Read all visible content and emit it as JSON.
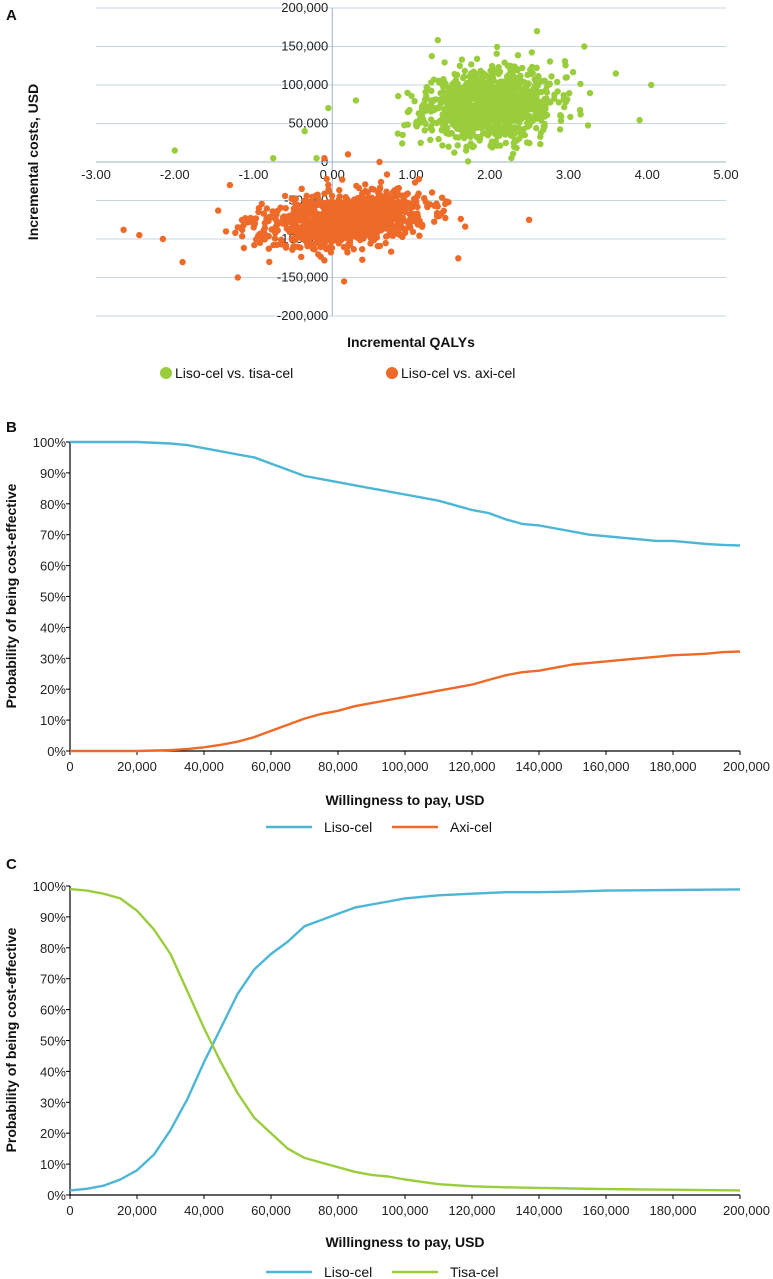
{
  "chart_data": [
    {
      "panel": "A",
      "type": "scatter",
      "xlabel": "Incremental QALYs",
      "ylabel": "Incremental costs, USD",
      "xlim": [
        -3,
        5
      ],
      "ylim": [
        -200000,
        200000
      ],
      "xticks": [
        -3,
        -2,
        -1,
        0,
        1,
        2,
        3,
        4,
        5
      ],
      "xtick_labels": [
        "-3.00",
        "-2.00",
        "-1.00",
        "0.00",
        "1.00",
        "2.00",
        "3.00",
        "4.00",
        "5.00"
      ],
      "yticks": [
        -200000,
        -150000,
        -100000,
        -50000,
        0,
        50000,
        100000,
        150000,
        200000
      ],
      "ytick_labels": [
        "-200,000",
        "-150,000",
        "-100,000",
        "-50,000",
        "0",
        "50,000",
        "100,000",
        "150,000",
        "200,000"
      ],
      "grid": true,
      "legend_position": "bottom",
      "series": [
        {
          "name": "Liso-cel vs. tisa-cel",
          "color": "#9ACD3C",
          "center": [
            2.0,
            75000
          ],
          "spread": [
            0.55,
            28000
          ],
          "count": 1000,
          "seed": 11,
          "points": [
            [
              -2.0,
              15000
            ],
            [
              -0.75,
              5000
            ],
            [
              -0.35,
              40000
            ],
            [
              -0.2,
              5000
            ],
            [
              4.05,
              100000
            ],
            [
              2.6,
              170000
            ],
            [
              3.2,
              150000
            ],
            [
              3.6,
              115000
            ],
            [
              -0.05,
              70000
            ],
            [
              0.3,
              80000
            ]
          ]
        },
        {
          "name": "Liso-cel vs. axi-cel",
          "color": "#EE6A28",
          "center": [
            0.15,
            -75000
          ],
          "spread": [
            0.6,
            20000
          ],
          "count": 1000,
          "seed": 23,
          "points": [
            [
              -2.65,
              -88000
            ],
            [
              -2.45,
              -95000
            ],
            [
              -2.15,
              -100000
            ],
            [
              -1.9,
              -130000
            ],
            [
              -1.2,
              -150000
            ],
            [
              0.15,
              -155000
            ],
            [
              1.6,
              -125000
            ],
            [
              2.5,
              -75000
            ],
            [
              -1.3,
              -30000
            ],
            [
              0.6,
              0
            ],
            [
              0.2,
              10000
            ],
            [
              -0.1,
              5000
            ]
          ]
        }
      ]
    },
    {
      "panel": "B",
      "type": "line",
      "xlabel": "Willingness to pay, USD",
      "ylabel": "Probability of being cost-effective",
      "xlim": [
        0,
        200000
      ],
      "ylim": [
        0,
        100
      ],
      "xticks": [
        0,
        20000,
        40000,
        60000,
        80000,
        100000,
        120000,
        140000,
        160000,
        180000,
        200000
      ],
      "xtick_labels": [
        "0",
        "20,000",
        "40,000",
        "60,000",
        "80,000",
        "100,000",
        "120,000",
        "140,000",
        "160,000",
        "180,000",
        "200,000"
      ],
      "yticks": [
        0,
        10,
        20,
        30,
        40,
        50,
        60,
        70,
        80,
        90,
        100
      ],
      "ytick_labels": [
        "0%",
        "10%",
        "20%",
        "30%",
        "40%",
        "50%",
        "60%",
        "70%",
        "80%",
        "90%",
        "100%"
      ],
      "grid": false,
      "legend_position": "bottom",
      "x": [
        0,
        10000,
        20000,
        30000,
        35000,
        40000,
        45000,
        50000,
        55000,
        60000,
        65000,
        70000,
        75000,
        80000,
        85000,
        90000,
        95000,
        100000,
        105000,
        110000,
        115000,
        120000,
        125000,
        130000,
        135000,
        140000,
        145000,
        150000,
        155000,
        160000,
        165000,
        170000,
        175000,
        180000,
        185000,
        190000,
        195000,
        200000
      ],
      "series": [
        {
          "name": "Liso-cel",
          "color": "#4DB6D6",
          "values": [
            100,
            100,
            100,
            99.5,
            99,
            98,
            97,
            96,
            95,
            93,
            91,
            89,
            88,
            87,
            86,
            85,
            84,
            83,
            82,
            81,
            79.5,
            78,
            77,
            75,
            73.5,
            73,
            72,
            71,
            70,
            69.5,
            69,
            68.5,
            68,
            68,
            67.5,
            67,
            66.7,
            66.5
          ]
        },
        {
          "name": "Axi-cel",
          "color": "#EE6A28",
          "values": [
            0,
            0,
            0,
            0.3,
            0.6,
            1.2,
            2,
            3,
            4.5,
            6.5,
            8.5,
            10.5,
            12,
            13,
            14.5,
            15.5,
            16.5,
            17.5,
            18.5,
            19.5,
            20.5,
            21.5,
            23,
            24.5,
            25.5,
            26,
            27,
            28,
            28.5,
            29,
            29.5,
            30,
            30.5,
            31,
            31.2,
            31.5,
            32,
            32.2
          ]
        }
      ]
    },
    {
      "panel": "C",
      "type": "line",
      "xlabel": "Willingness to pay, USD",
      "ylabel": "Probability of being cost-effective",
      "xlim": [
        0,
        200000
      ],
      "ylim": [
        0,
        100
      ],
      "xticks": [
        0,
        20000,
        40000,
        60000,
        80000,
        100000,
        120000,
        140000,
        160000,
        180000,
        200000
      ],
      "xtick_labels": [
        "0",
        "20,000",
        "40,000",
        "60,000",
        "80,000",
        "100,000",
        "120,000",
        "140,000",
        "160,000",
        "180,000",
        "200,000"
      ],
      "yticks": [
        0,
        10,
        20,
        30,
        40,
        50,
        60,
        70,
        80,
        90,
        100
      ],
      "ytick_labels": [
        "0%",
        "10%",
        "20%",
        "30%",
        "40%",
        "50%",
        "60%",
        "70%",
        "80%",
        "90%",
        "100%"
      ],
      "grid": false,
      "legend_position": "bottom",
      "x": [
        0,
        5000,
        10000,
        15000,
        20000,
        25000,
        30000,
        35000,
        40000,
        45000,
        50000,
        55000,
        60000,
        65000,
        70000,
        75000,
        80000,
        85000,
        90000,
        95000,
        100000,
        110000,
        120000,
        130000,
        140000,
        150000,
        160000,
        170000,
        180000,
        190000,
        200000
      ],
      "series": [
        {
          "name": "Liso-cel",
          "color": "#4DB6D6",
          "values": [
            1.5,
            2,
            3,
            5,
            8,
            13,
            21,
            31,
            43,
            54,
            65,
            73,
            78,
            82,
            87,
            89,
            91,
            93,
            94,
            95,
            96,
            97,
            97.5,
            98,
            98,
            98.2,
            98.5,
            98.6,
            98.7,
            98.8,
            98.9
          ]
        },
        {
          "name": "Tisa-cel",
          "color": "#9ACD3C",
          "values": [
            99,
            98.5,
            97.5,
            96,
            92,
            86,
            78,
            66,
            54,
            43,
            33,
            25,
            20,
            15,
            12,
            10.5,
            9,
            7.5,
            6.5,
            6,
            5,
            3.5,
            2.8,
            2.5,
            2.3,
            2.1,
            1.9,
            1.8,
            1.7,
            1.6,
            1.5
          ]
        }
      ]
    }
  ]
}
